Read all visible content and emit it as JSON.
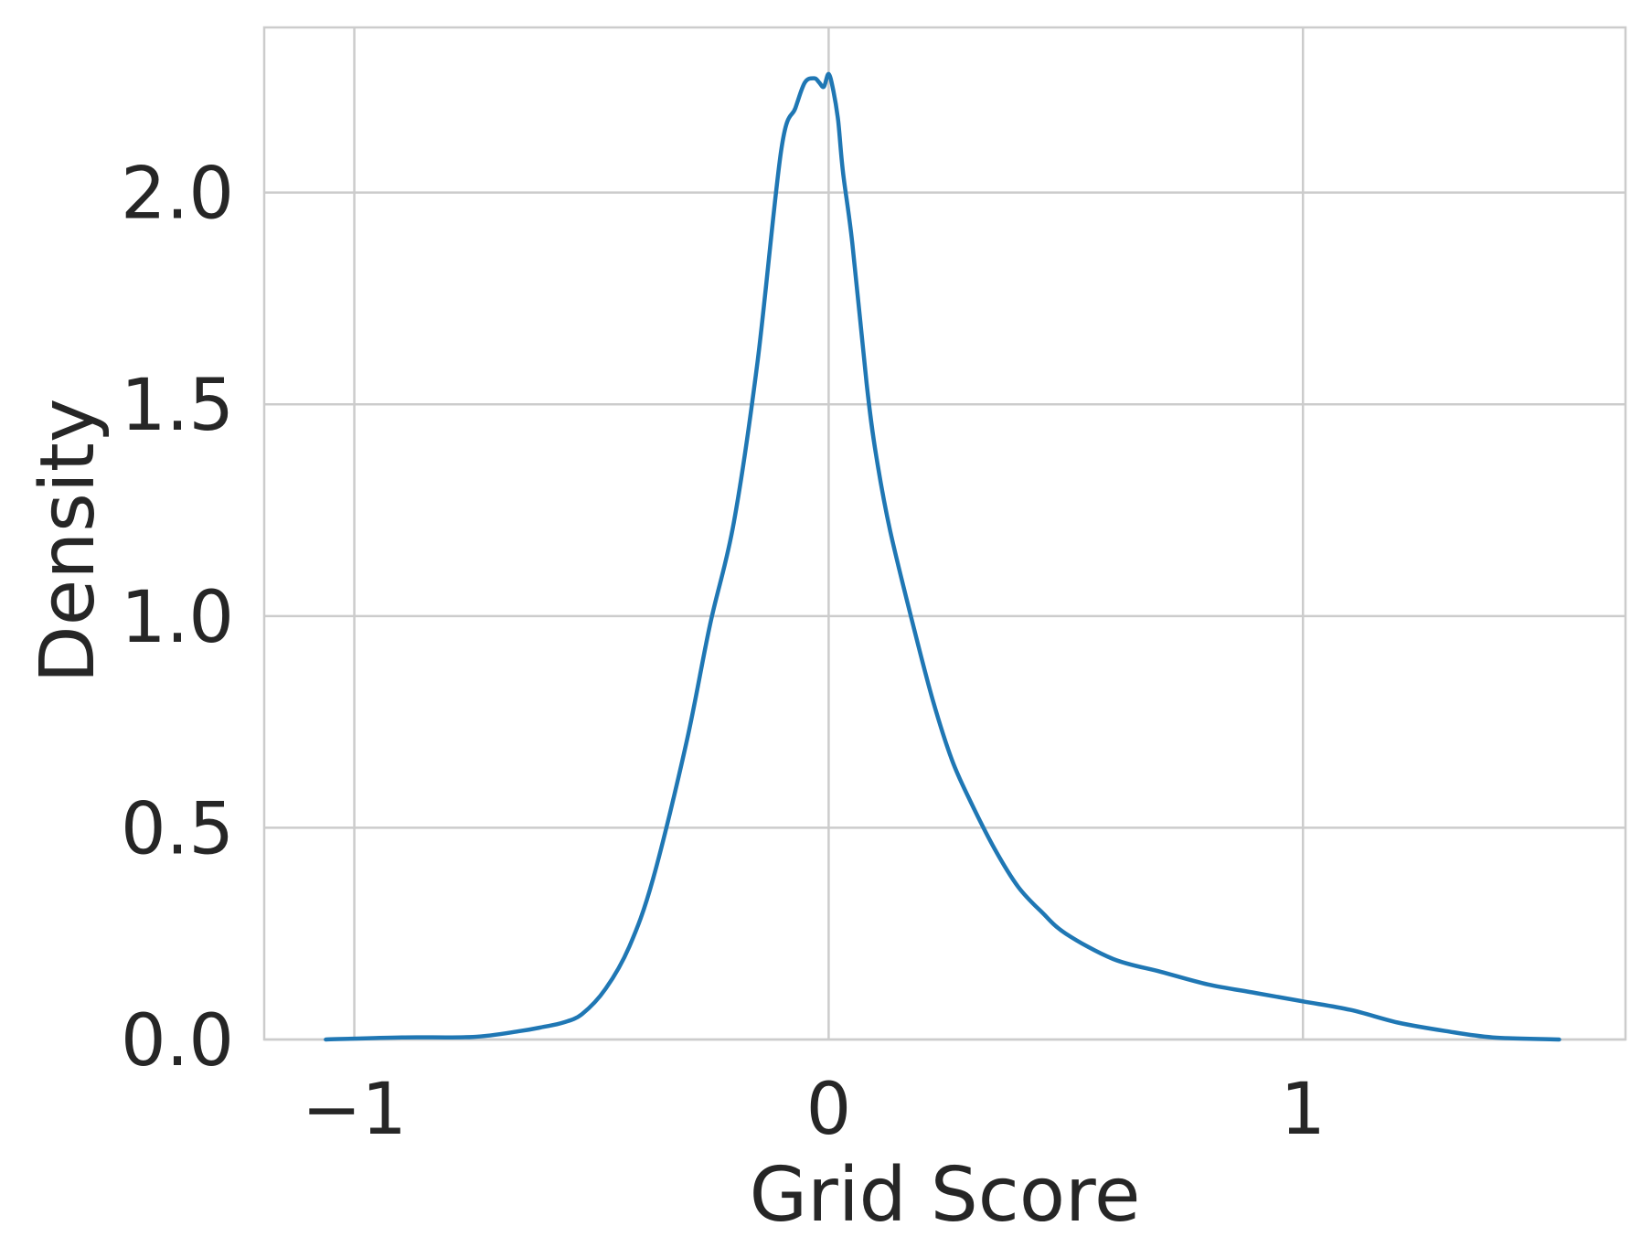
{
  "chart_data": {
    "type": "line",
    "title": "",
    "xlabel": "Grid Score",
    "ylabel": "Density",
    "xlim": [
      -1.19,
      1.68
    ],
    "ylim": [
      0.0,
      2.39
    ],
    "xticks": [
      -1,
      0,
      1
    ],
    "xtick_labels": [
      "−1",
      "0",
      "1"
    ],
    "yticks": [
      0.0,
      0.5,
      1.0,
      1.5,
      2.0
    ],
    "ytick_labels": [
      "0.0",
      "0.5",
      "1.0",
      "1.5",
      "2.0"
    ],
    "grid": true,
    "colors": {
      "line": "#1f77b4",
      "grid": "#cccccc",
      "spine": "#cccccc",
      "text": "#262626"
    },
    "series": [
      {
        "x": [
          -1.06,
          -0.9,
          -0.75,
          -0.65,
          -0.6,
          -0.56,
          -0.52,
          -0.47,
          -0.42,
          -0.37,
          -0.3,
          -0.25,
          -0.2,
          -0.15,
          -0.1,
          -0.07,
          -0.05,
          -0.03,
          -0.02,
          -0.01,
          0.0,
          0.01,
          0.02,
          0.03,
          0.05,
          0.08,
          0.1,
          0.13,
          0.18,
          0.22,
          0.26,
          0.3,
          0.35,
          0.4,
          0.45,
          0.5,
          0.6,
          0.7,
          0.8,
          0.9,
          1.0,
          1.1,
          1.2,
          1.3,
          1.4,
          1.54
        ],
        "y": [
          0.0,
          0.005,
          0.006,
          0.02,
          0.03,
          0.04,
          0.06,
          0.12,
          0.22,
          0.38,
          0.7,
          0.98,
          1.22,
          1.6,
          2.1,
          2.2,
          2.26,
          2.27,
          2.26,
          2.25,
          2.28,
          2.24,
          2.17,
          2.05,
          1.88,
          1.55,
          1.38,
          1.2,
          0.97,
          0.8,
          0.66,
          0.56,
          0.45,
          0.36,
          0.3,
          0.25,
          0.19,
          0.16,
          0.13,
          0.11,
          0.09,
          0.07,
          0.04,
          0.02,
          0.005,
          0.0
        ]
      }
    ]
  }
}
